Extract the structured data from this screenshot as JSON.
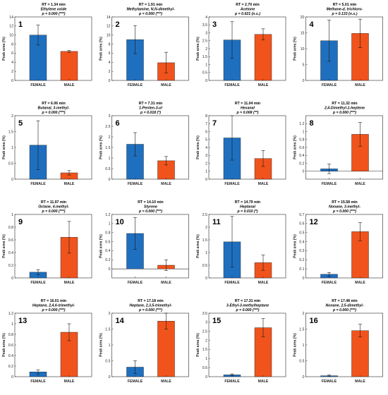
{
  "ylabel": "Peak area (%)",
  "colors": {
    "female": "#1f6fbf",
    "male": "#f0531c"
  },
  "chart_data": [
    {
      "type": "bar",
      "id": "1",
      "rt": "RT = 1.34 min",
      "compound": "Ethylene oxide",
      "pvalue": "p = 0.000 (***)",
      "categories": [
        "FEMALE",
        "MALE"
      ],
      "values": [
        10.0,
        6.4
      ],
      "errors": [
        2.2,
        0.2
      ],
      "ylim": [
        0,
        14
      ],
      "yticks": [
        0,
        2,
        4,
        6,
        8,
        10,
        12,
        14
      ]
    },
    {
      "type": "bar",
      "id": "2",
      "rt": "RT = 1.91 min",
      "compound": "Methylamine, N,N-dimethyl-",
      "pvalue": "p = 0.000 (***)",
      "categories": [
        "FEMALE",
        "MALE"
      ],
      "values": [
        9.0,
        3.9
      ],
      "errors": [
        3.1,
        2.3
      ],
      "ylim": [
        0,
        14
      ],
      "yticks": [
        0,
        2,
        4,
        6,
        8,
        10,
        12,
        14
      ]
    },
    {
      "type": "bar",
      "id": "3",
      "rt": "RT = 2.70 min",
      "compound": "Acetone",
      "pvalue": "p = 0.621 (n.s.)",
      "categories": [
        "FEMALE",
        "MALE"
      ],
      "values": [
        2.55,
        2.9
      ],
      "errors": [
        1.15,
        0.35
      ],
      "ylim": [
        0,
        4
      ],
      "yticks": [
        0,
        0.5,
        1,
        1.5,
        2,
        2.5,
        3,
        3.5,
        4
      ]
    },
    {
      "type": "bar",
      "id": "4",
      "rt": "RT = 5.01 min",
      "compound": "Methane-d, trichloro-",
      "pvalue": "p = 0.133 (n.s.)",
      "categories": [
        "FEMALE",
        "MALE"
      ],
      "values": [
        12.5,
        14.8
      ],
      "errors": [
        6.5,
        4.5
      ],
      "ylim": [
        0,
        20
      ],
      "yticks": [
        0,
        5,
        10,
        15,
        20
      ]
    },
    {
      "type": "bar",
      "id": "5",
      "rt": "RT = 6.06 min",
      "compound": "Butanal, 3-methyl-",
      "pvalue": "p = 0.000 (***)",
      "categories": [
        "FEMALE",
        "MALE"
      ],
      "values": [
        1.07,
        0.2
      ],
      "errors": [
        0.77,
        0.07
      ],
      "ylim": [
        0,
        2
      ],
      "yticks": [
        0,
        0.5,
        1,
        1.5,
        2
      ]
    },
    {
      "type": "bar",
      "id": "6",
      "rt": "RT = 7.31 min",
      "compound": "1-Penten-3-ol",
      "pvalue": "p = 0.018 (*)",
      "categories": [
        "FEMALE",
        "MALE"
      ],
      "values": [
        1.65,
        0.87
      ],
      "errors": [
        0.55,
        0.2
      ],
      "ylim": [
        0,
        3
      ],
      "yticks": [
        0,
        0.5,
        1,
        1.5,
        2,
        2.5,
        3
      ]
    },
    {
      "type": "bar",
      "id": "7",
      "rt": "RT = 11.04 min",
      "compound": "Hexanal",
      "pvalue": "p = 0.008 (**)",
      "categories": [
        "FEMALE",
        "MALE"
      ],
      "values": [
        5.2,
        2.6
      ],
      "errors": [
        2.8,
        1.0
      ],
      "ylim": [
        0,
        8
      ],
      "yticks": [
        0,
        1,
        2,
        3,
        4,
        5,
        6,
        7,
        8
      ]
    },
    {
      "type": "bar",
      "id": "8",
      "rt": "RT = 11.32 min",
      "compound": "2,4-Dimethyl-1-heptene",
      "pvalue": "p = 0.000 (***)",
      "categories": [
        "FEMALE",
        "MALE"
      ],
      "values": [
        0.06,
        0.93
      ],
      "errors": [
        0.12,
        0.3
      ],
      "ylim": [
        -0.2,
        1.4
      ],
      "yticks": [
        0,
        0.2,
        0.4,
        0.6,
        0.8,
        1,
        1.2
      ]
    },
    {
      "type": "bar",
      "id": "9",
      "rt": "RT = 11.97 min",
      "compound": "Octane, 4-methyl-",
      "pvalue": "p = 0.000 (***)",
      "categories": [
        "FEMALE",
        "MALE"
      ],
      "values": [
        0.09,
        0.64
      ],
      "errors": [
        0.04,
        0.25
      ],
      "ylim": [
        0,
        1
      ],
      "yticks": [
        0,
        0.2,
        0.4,
        0.6,
        0.8,
        1
      ]
    },
    {
      "type": "bar",
      "id": "10",
      "rt": "RT = 14.10 min",
      "compound": "Styrene",
      "pvalue": "p = 0.000 (***)",
      "categories": [
        "FEMALE",
        "MALE"
      ],
      "values": [
        0.78,
        0.08
      ],
      "errors": [
        0.35,
        0.12
      ],
      "ylim": [
        -0.2,
        1.2
      ],
      "yticks": [
        0,
        0.2,
        0.4,
        0.6,
        0.8,
        1,
        1.2
      ]
    },
    {
      "type": "bar",
      "id": "11",
      "rt": "RT = 14.79 min",
      "compound": "Heptanal",
      "pvalue": "p = 0.010 (*)",
      "categories": [
        "FEMALE",
        "MALE"
      ],
      "values": [
        1.42,
        0.6
      ],
      "errors": [
        1.0,
        0.3
      ],
      "ylim": [
        0,
        2.5
      ],
      "yticks": [
        0,
        0.5,
        1,
        1.5,
        2,
        2.5
      ]
    },
    {
      "type": "bar",
      "id": "12",
      "rt": "RT = 15.58 min",
      "compound": "Nonane, 3-methyl-",
      "pvalue": "p = 0.000 (***)",
      "categories": [
        "FEMALE",
        "MALE"
      ],
      "values": [
        0.04,
        0.51
      ],
      "errors": [
        0.02,
        0.1
      ],
      "ylim": [
        0,
        0.7
      ],
      "yticks": [
        0,
        0.1,
        0.2,
        0.3,
        0.4,
        0.5,
        0.6,
        0.7
      ]
    },
    {
      "type": "bar",
      "id": "13",
      "rt": "RT = 16.01 min",
      "compound": "Heptane, 2,4,6-trimethyl-",
      "pvalue": "p = 0.000 (***)",
      "categories": [
        "FEMALE",
        "MALE"
      ],
      "values": [
        0.09,
        0.84
      ],
      "errors": [
        0.04,
        0.16
      ],
      "ylim": [
        0,
        1.2
      ],
      "yticks": [
        0,
        0.2,
        0.4,
        0.6,
        0.8,
        1,
        1.2
      ]
    },
    {
      "type": "bar",
      "id": "14",
      "rt": "RT = 17.18 min",
      "compound": "Heptane, 2,3,5-trimethyl-",
      "pvalue": "p = 0.000 (***)",
      "categories": [
        "FEMALE",
        "MALE"
      ],
      "values": [
        0.3,
        1.75
      ],
      "errors": [
        0.2,
        0.25
      ],
      "ylim": [
        0,
        2
      ],
      "yticks": [
        0,
        0.5,
        1,
        1.5,
        2
      ]
    },
    {
      "type": "bar",
      "id": "15",
      "rt": "RT = 17.31 min",
      "compound": "3-Ethyl-3-methylheptane",
      "pvalue": "p = 0.000 (***)",
      "categories": [
        "FEMALE",
        "MALE"
      ],
      "values": [
        0.1,
        2.7
      ],
      "errors": [
        0.05,
        0.5
      ],
      "ylim": [
        0,
        3.5
      ],
      "yticks": [
        0,
        0.5,
        1,
        1.5,
        2,
        2.5,
        3,
        3.5
      ]
    },
    {
      "type": "bar",
      "id": "16",
      "rt": "RT = 17.48 min",
      "compound": "Nonane, 2,5-dimethyl-",
      "pvalue": "p = 0.000 (***)",
      "categories": [
        "FEMALE",
        "MALE"
      ],
      "values": [
        0.03,
        1.45
      ],
      "errors": [
        0.02,
        0.2
      ],
      "ylim": [
        0,
        2
      ],
      "yticks": [
        0,
        0.5,
        1,
        1.5,
        2
      ]
    }
  ]
}
